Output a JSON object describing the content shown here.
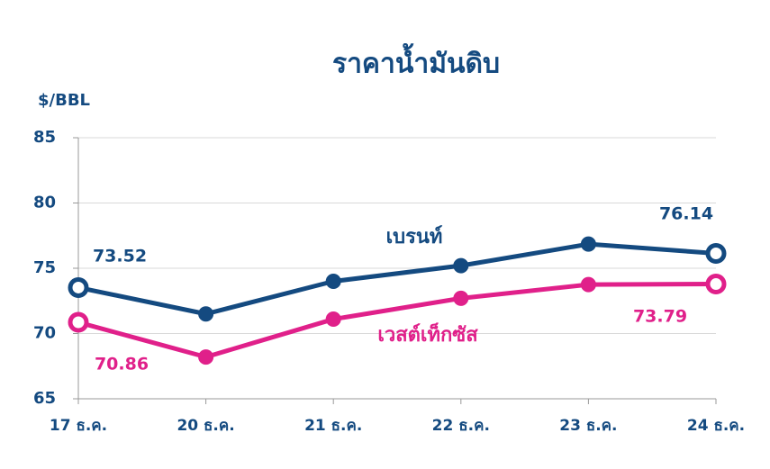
{
  "chart_data": {
    "type": "line",
    "title": "ราคาน้ำมันดิบ",
    "y_label": "$/BBL",
    "categories": [
      "17 ธ.ค.",
      "20 ธ.ค.",
      "21 ธ.ค.",
      "22 ธ.ค.",
      "23 ธ.ค.",
      "24 ธ.ค."
    ],
    "series": [
      {
        "name": "เบรนท์",
        "color": "#144a80",
        "values": [
          73.52,
          71.5,
          74.0,
          75.2,
          76.85,
          76.14
        ]
      },
      {
        "name": "เวสต์เท็กซัส",
        "color": "#e0208a",
        "values": [
          70.86,
          68.2,
          71.1,
          72.7,
          73.75,
          73.79
        ]
      }
    ],
    "ylim": [
      65,
      85
    ],
    "yticks": [
      65,
      70,
      75,
      80,
      85
    ],
    "grid": true
  }
}
